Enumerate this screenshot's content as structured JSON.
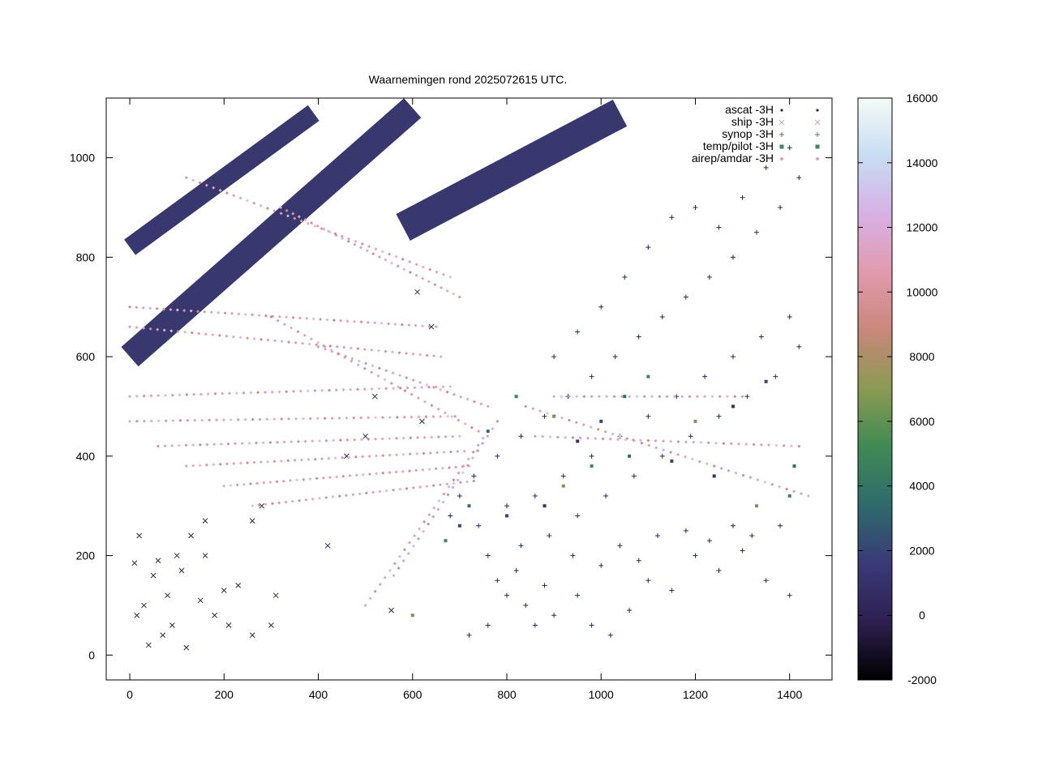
{
  "chart_data": {
    "type": "scatter",
    "title": "Waarnemingen rond 2025072615 UTC.",
    "xlabel": "",
    "ylabel": "",
    "xlim": [
      -50,
      1490
    ],
    "ylim": [
      -50,
      1120
    ],
    "xticks": [
      0,
      200,
      400,
      600,
      800,
      1000,
      1200,
      1400
    ],
    "yticks": [
      0,
      200,
      400,
      600,
      800,
      1000
    ],
    "grid": false,
    "legend_position": "top-right",
    "series": [
      {
        "name": "ascat -3H",
        "marker": "dot"
      },
      {
        "name": "ship -3H",
        "marker": "cross"
      },
      {
        "name": "synop -3H",
        "marker": "plus"
      },
      {
        "name": "temp/pilot -3H",
        "marker": "square"
      },
      {
        "name": "airep/amdar -3H",
        "marker": "diamond"
      }
    ],
    "colorbar": {
      "range": [
        -2000,
        16000
      ],
      "ticks": [
        -2000,
        0,
        2000,
        4000,
        6000,
        8000,
        10000,
        12000,
        14000,
        16000
      ],
      "palette": [
        "#000000",
        "#2e2050",
        "#3a3a78",
        "#2e6a6c",
        "#3f8a55",
        "#8a9a52",
        "#c9877a",
        "#e19aad",
        "#d8b0e6",
        "#c8dcf2",
        "#f4fbf7"
      ]
    },
    "samples": {
      "ascat_swaths": [
        {
          "from": [
            0,
            600
          ],
          "to": [
            600,
            1100
          ],
          "width": 95
        },
        {
          "from": [
            580,
            860
          ],
          "to": [
            1040,
            1090
          ],
          "width": 110
        },
        {
          "from": [
            0,
            820
          ],
          "to": [
            390,
            1090
          ],
          "width": 70
        }
      ],
      "ship": [
        [
          10,
          185
        ],
        [
          15,
          80
        ],
        [
          30,
          100
        ],
        [
          40,
          20
        ],
        [
          60,
          190
        ],
        [
          80,
          120
        ],
        [
          90,
          60
        ],
        [
          100,
          200
        ],
        [
          110,
          170
        ],
        [
          130,
          240
        ],
        [
          150,
          110
        ],
        [
          160,
          200
        ],
        [
          180,
          80
        ],
        [
          200,
          130
        ],
        [
          230,
          140
        ],
        [
          260,
          40
        ],
        [
          280,
          300
        ],
        [
          310,
          120
        ],
        [
          160,
          270
        ],
        [
          50,
          160
        ],
        [
          210,
          60
        ],
        [
          120,
          15
        ],
        [
          300,
          60
        ],
        [
          420,
          220
        ],
        [
          460,
          400
        ],
        [
          500,
          440
        ],
        [
          520,
          520
        ],
        [
          620,
          470
        ],
        [
          555,
          90
        ],
        [
          640,
          660
        ],
        [
          610,
          730
        ],
        [
          20,
          240
        ],
        [
          70,
          40
        ],
        [
          260,
          270
        ]
      ],
      "synop": [
        [
          760,
          200
        ],
        [
          780,
          150
        ],
        [
          800,
          120
        ],
        [
          840,
          100
        ],
        [
          860,
          60
        ],
        [
          900,
          80
        ],
        [
          950,
          120
        ],
        [
          980,
          60
        ],
        [
          1020,
          40
        ],
        [
          1060,
          90
        ],
        [
          1100,
          150
        ],
        [
          1150,
          130
        ],
        [
          1200,
          200
        ],
        [
          1250,
          170
        ],
        [
          1300,
          210
        ],
        [
          1350,
          150
        ],
        [
          1400,
          120
        ],
        [
          720,
          40
        ],
        [
          760,
          60
        ],
        [
          820,
          170
        ],
        [
          880,
          140
        ],
        [
          940,
          200
        ],
        [
          1000,
          180
        ],
        [
          1040,
          220
        ],
        [
          1080,
          190
        ],
        [
          1120,
          240
        ],
        [
          1180,
          250
        ],
        [
          1230,
          230
        ],
        [
          1280,
          260
        ],
        [
          1320,
          240
        ],
        [
          1380,
          260
        ],
        [
          900,
          600
        ],
        [
          950,
          650
        ],
        [
          1000,
          700
        ],
        [
          1050,
          760
        ],
        [
          1100,
          820
        ],
        [
          1150,
          880
        ],
        [
          1200,
          900
        ],
        [
          1250,
          860
        ],
        [
          1300,
          920
        ],
        [
          1350,
          980
        ],
        [
          1400,
          1020
        ],
        [
          1420,
          960
        ],
        [
          1380,
          900
        ],
        [
          1330,
          850
        ],
        [
          1280,
          800
        ],
        [
          1230,
          760
        ],
        [
          1180,
          720
        ],
        [
          1130,
          680
        ],
        [
          1080,
          640
        ],
        [
          1030,
          600
        ],
        [
          980,
          560
        ],
        [
          930,
          520
        ],
        [
          880,
          480
        ],
        [
          830,
          440
        ],
        [
          780,
          400
        ],
        [
          730,
          360
        ],
        [
          700,
          320
        ],
        [
          680,
          280
        ],
        [
          740,
          260
        ],
        [
          800,
          300
        ],
        [
          860,
          320
        ],
        [
          920,
          360
        ],
        [
          980,
          400
        ],
        [
          1040,
          440
        ],
        [
          1100,
          480
        ],
        [
          1160,
          520
        ],
        [
          1220,
          560
        ],
        [
          1280,
          600
        ],
        [
          1340,
          640
        ],
        [
          1400,
          680
        ],
        [
          1420,
          620
        ],
        [
          1370,
          560
        ],
        [
          1310,
          520
        ],
        [
          1250,
          480
        ],
        [
          1190,
          440
        ],
        [
          1130,
          400
        ],
        [
          1070,
          360
        ],
        [
          1010,
          320
        ],
        [
          950,
          280
        ],
        [
          890,
          240
        ],
        [
          830,
          220
        ]
      ],
      "temp": [
        [
          700,
          260
        ],
        [
          760,
          450
        ],
        [
          820,
          520
        ],
        [
          900,
          480
        ],
        [
          950,
          430
        ],
        [
          1000,
          470
        ],
        [
          1050,
          520
        ],
        [
          1100,
          560
        ],
        [
          1200,
          470
        ],
        [
          1280,
          500
        ],
        [
          1350,
          550
        ],
        [
          1410,
          380
        ],
        [
          1400,
          320
        ],
        [
          1330,
          300
        ],
        [
          1240,
          360
        ],
        [
          1150,
          390
        ],
        [
          1060,
          400
        ],
        [
          980,
          380
        ],
        [
          920,
          340
        ],
        [
          880,
          300
        ],
        [
          800,
          280
        ],
        [
          720,
          300
        ],
        [
          670,
          230
        ],
        [
          600,
          80
        ]
      ],
      "airep_lines": [
        {
          "from": [
            0,
            700
          ],
          "to": [
            650,
            660
          ],
          "n": 46
        },
        {
          "from": [
            0,
            660
          ],
          "to": [
            660,
            600
          ],
          "n": 46
        },
        {
          "from": [
            0,
            520
          ],
          "to": [
            680,
            540
          ],
          "n": 46
        },
        {
          "from": [
            0,
            470
          ],
          "to": [
            690,
            480
          ],
          "n": 46
        },
        {
          "from": [
            60,
            420
          ],
          "to": [
            700,
            440
          ],
          "n": 44
        },
        {
          "from": [
            120,
            380
          ],
          "to": [
            710,
            410
          ],
          "n": 42
        },
        {
          "from": [
            200,
            340
          ],
          "to": [
            720,
            380
          ],
          "n": 38
        },
        {
          "from": [
            260,
            300
          ],
          "to": [
            730,
            350
          ],
          "n": 34
        },
        {
          "from": [
            120,
            960
          ],
          "to": [
            680,
            760
          ],
          "n": 40
        },
        {
          "from": [
            320,
            900
          ],
          "to": [
            700,
            720
          ],
          "n": 30
        },
        {
          "from": [
            300,
            680
          ],
          "to": [
            740,
            450
          ],
          "n": 32
        },
        {
          "from": [
            400,
            620
          ],
          "to": [
            760,
            500
          ],
          "n": 26
        },
        {
          "from": [
            500,
            100
          ],
          "to": [
            760,
            450
          ],
          "n": 26
        },
        {
          "from": [
            560,
            160
          ],
          "to": [
            780,
            470
          ],
          "n": 22
        },
        {
          "from": [
            840,
            500
          ],
          "to": [
            1440,
            320
          ],
          "n": 40
        },
        {
          "from": [
            860,
            440
          ],
          "to": [
            1420,
            420
          ],
          "n": 36
        },
        {
          "from": [
            900,
            520
          ],
          "to": [
            1300,
            520
          ],
          "n": 26
        }
      ],
      "airep_values": [
        9000,
        10500,
        11000,
        12000,
        9500,
        10800,
        11500,
        13000,
        10000,
        12500
      ]
    }
  }
}
